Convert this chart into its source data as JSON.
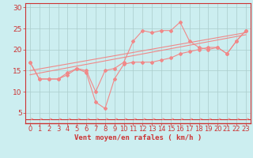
{
  "xlabel": "Vent moyen/en rafales ( km/h )",
  "bg_color": "#cceef0",
  "line_color": "#f08888",
  "grid_color": "#aacccc",
  "axis_color": "#cc3333",
  "text_color": "#cc3333",
  "red_line_color": "#cc3333",
  "xlim": [
    -0.5,
    23.5
  ],
  "ylim": [
    2.5,
    31
  ],
  "yticks": [
    5,
    10,
    15,
    20,
    25,
    30
  ],
  "xticks": [
    0,
    1,
    2,
    3,
    4,
    5,
    6,
    7,
    8,
    9,
    10,
    11,
    12,
    13,
    14,
    15,
    16,
    17,
    18,
    19,
    20,
    21,
    22,
    23
  ],
  "line1_x": [
    0,
    1,
    2,
    3,
    4,
    5,
    6,
    7,
    8,
    9,
    10,
    11,
    12,
    13,
    14,
    15,
    16,
    17,
    18,
    19,
    20,
    21,
    22,
    23
  ],
  "line1_y": [
    17,
    13,
    13,
    13,
    14.5,
    15.5,
    15,
    10,
    15,
    15.5,
    17,
    22,
    24.5,
    24,
    24.5,
    24.5,
    26.5,
    22,
    20.5,
    20,
    20.5,
    19,
    22,
    24.5
  ],
  "line2_x": [
    0,
    1,
    2,
    3,
    4,
    5,
    6,
    7,
    8,
    9,
    10,
    11,
    12,
    13,
    14,
    15,
    16,
    17,
    18,
    19,
    20,
    21,
    22,
    23
  ],
  "line2_y": [
    17,
    13,
    13,
    13,
    14,
    15.5,
    14.5,
    7.5,
    6,
    13,
    16.5,
    17,
    17,
    17,
    17.5,
    18,
    19,
    19.5,
    20,
    20.5,
    20.5,
    19,
    22,
    24.5
  ],
  "line3_x": [
    0,
    23
  ],
  "line3_y": [
    14.0,
    23.5
  ],
  "line4_x": [
    0,
    23
  ],
  "line4_y": [
    15.0,
    24.0
  ],
  "font_size": 6.5
}
